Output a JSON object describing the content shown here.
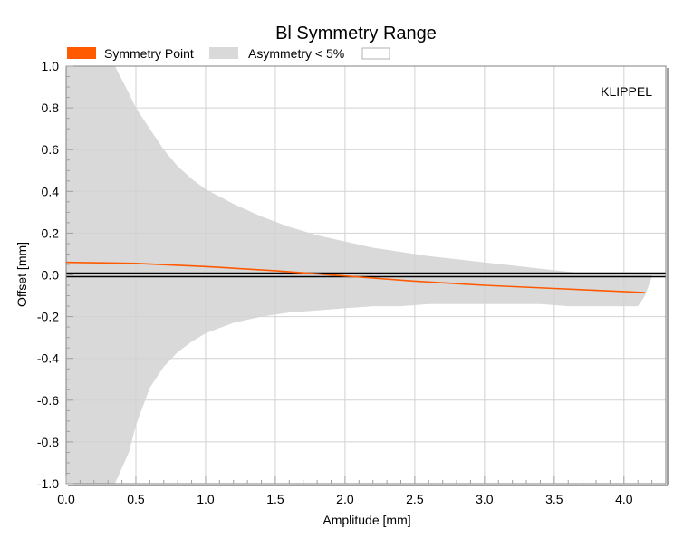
{
  "chart_data": {
    "type": "area",
    "title": "Bl Symmetry Range",
    "xlabel": "Amplitude [mm]",
    "ylabel": "Offset [mm]",
    "watermark": "KLIPPEL",
    "xlim": [
      0,
      4.3
    ],
    "ylim": [
      -1.0,
      1.0
    ],
    "x_ticks": [
      0.0,
      0.5,
      1.0,
      1.5,
      2.0,
      2.5,
      3.0,
      3.5,
      4.0
    ],
    "x_tick_labels": [
      "0.0",
      "0.5",
      "1.0",
      "1.5",
      "2.0",
      "2.5",
      "3.0",
      "3.5",
      "4.0"
    ],
    "y_ticks": [
      1.0,
      0.8,
      0.6,
      0.4,
      0.2,
      0.0,
      -0.2,
      -0.4,
      -0.6,
      -0.8,
      -1.0
    ],
    "y_tick_labels": [
      "1.0",
      "0.8",
      "0.6",
      "0.4",
      "0.2",
      "0.0",
      "-0.2",
      "-0.4",
      "-0.6",
      "-0.8",
      "-1.0"
    ],
    "grid": true,
    "legend_position": "top-left",
    "legend": [
      {
        "label": "Symmetry Point",
        "color": "#ff5a00",
        "swatch": "filled"
      },
      {
        "label": "Asymmetry < 5%",
        "color": "#d9d9d9",
        "swatch": "filled"
      },
      {
        "label": "",
        "color": "#ffffff",
        "swatch": "outlined"
      }
    ],
    "reference_line": {
      "y": 0.0,
      "color": "#000000"
    },
    "series": [
      {
        "name": "Asymmetry < 5%",
        "kind": "band",
        "color": "#d9d9d9",
        "x": [
          0.0,
          0.2,
          0.35,
          0.45,
          0.5,
          0.6,
          0.7,
          0.8,
          0.9,
          1.0,
          1.2,
          1.4,
          1.6,
          1.8,
          2.0,
          2.2,
          2.4,
          2.6,
          2.8,
          3.0,
          3.2,
          3.4,
          3.6,
          3.7,
          3.8,
          3.9,
          4.0,
          4.1,
          4.15,
          4.2
        ],
        "upper": [
          1.0,
          1.0,
          1.0,
          0.87,
          0.8,
          0.7,
          0.6,
          0.52,
          0.46,
          0.41,
          0.34,
          0.28,
          0.23,
          0.19,
          0.16,
          0.13,
          0.11,
          0.09,
          0.075,
          0.06,
          0.045,
          0.03,
          0.015,
          0.008,
          0.0,
          0.0,
          0.0,
          0.0,
          0.0,
          0.0
        ],
        "lower": [
          -1.0,
          -1.0,
          -1.0,
          -0.85,
          -0.72,
          -0.54,
          -0.44,
          -0.37,
          -0.32,
          -0.28,
          -0.23,
          -0.2,
          -0.18,
          -0.17,
          -0.16,
          -0.15,
          -0.15,
          -0.14,
          -0.14,
          -0.14,
          -0.14,
          -0.14,
          -0.15,
          -0.15,
          -0.15,
          -0.15,
          -0.15,
          -0.15,
          -0.1,
          -0.01
        ]
      },
      {
        "name": "Symmetry Point",
        "kind": "line",
        "color": "#ff5a00",
        "x": [
          0.0,
          0.5,
          1.0,
          1.5,
          1.8,
          2.0,
          2.2,
          2.5,
          3.0,
          3.5,
          4.0,
          4.15
        ],
        "y": [
          0.06,
          0.055,
          0.04,
          0.02,
          0.005,
          -0.005,
          -0.015,
          -0.03,
          -0.05,
          -0.065,
          -0.08,
          -0.085
        ]
      }
    ]
  }
}
